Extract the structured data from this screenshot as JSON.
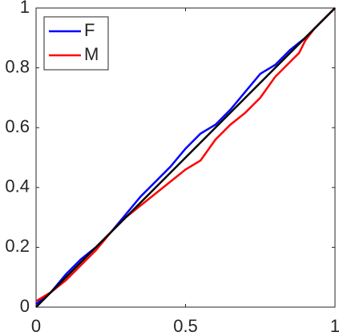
{
  "chart_data": {
    "type": "line",
    "series": [
      {
        "name": "F",
        "color": "#0000ff",
        "x": [
          0,
          0.05,
          0.1,
          0.15,
          0.2,
          0.25,
          0.3,
          0.35,
          0.4,
          0.45,
          0.5,
          0.55,
          0.6,
          0.65,
          0.7,
          0.75,
          0.8,
          0.85,
          0.9,
          0.95,
          1
        ],
        "values": [
          0.01,
          0.05,
          0.11,
          0.16,
          0.2,
          0.25,
          0.31,
          0.37,
          0.42,
          0.47,
          0.53,
          0.58,
          0.61,
          0.66,
          0.72,
          0.78,
          0.81,
          0.86,
          0.9,
          0.95,
          1
        ]
      },
      {
        "name": "M",
        "color": "#ff0000",
        "x": [
          0,
          0.05,
          0.1,
          0.15,
          0.2,
          0.25,
          0.3,
          0.35,
          0.4,
          0.45,
          0.5,
          0.55,
          0.6,
          0.65,
          0.7,
          0.75,
          0.8,
          0.85,
          0.88,
          0.9,
          0.93,
          1
        ],
        "values": [
          0.02,
          0.05,
          0.09,
          0.14,
          0.19,
          0.25,
          0.3,
          0.34,
          0.38,
          0.42,
          0.46,
          0.49,
          0.56,
          0.61,
          0.65,
          0.7,
          0.77,
          0.82,
          0.85,
          0.89,
          0.93,
          1
        ]
      },
      {
        "color": "#000000",
        "x": [
          0,
          1
        ],
        "values": [
          0,
          1
        ]
      }
    ],
    "xlim": [
      0,
      1
    ],
    "ylim": [
      0,
      1
    ],
    "xticks": [
      0,
      0.5,
      1
    ],
    "yticks": [
      0,
      0.2,
      0.4,
      0.6,
      0.8,
      1
    ],
    "legend": "upper-left"
  }
}
